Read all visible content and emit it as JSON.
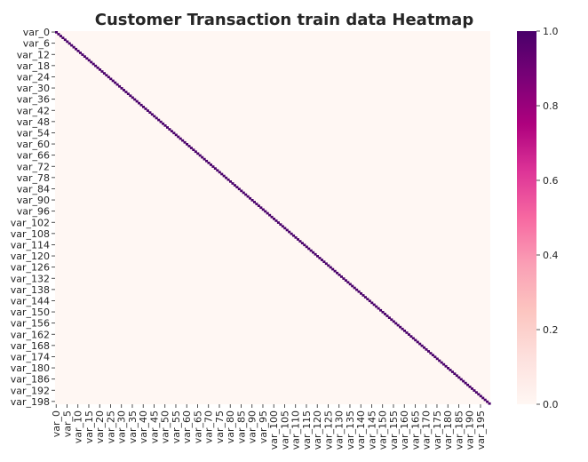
{
  "chart_data": {
    "type": "heatmap",
    "title": "Customer Transaction train data Heatmap",
    "xlabel": "",
    "ylabel": "",
    "variable_prefix": "var_",
    "variable_count": 200,
    "x_tick_labels": [
      "var_0",
      "var_5",
      "var_10",
      "var_15",
      "var_20",
      "var_25",
      "var_30",
      "var_35",
      "var_40",
      "var_45",
      "var_50",
      "var_55",
      "var_60",
      "var_65",
      "var_70",
      "var_75",
      "var_80",
      "var_85",
      "var_90",
      "var_95",
      "var_100",
      "var_105",
      "var_110",
      "var_115",
      "var_120",
      "var_125",
      "var_130",
      "var_135",
      "var_140",
      "var_145",
      "var_150",
      "var_155",
      "var_160",
      "var_165",
      "var_170",
      "var_175",
      "var_180",
      "var_185",
      "var_190",
      "var_195"
    ],
    "y_tick_labels": [
      "var_0",
      "var_6",
      "var_12",
      "var_18",
      "var_24",
      "var_30",
      "var_36",
      "var_42",
      "var_48",
      "var_54",
      "var_60",
      "var_66",
      "var_72",
      "var_78",
      "var_84",
      "var_90",
      "var_96",
      "var_102",
      "var_108",
      "var_114",
      "var_120",
      "var_126",
      "var_132",
      "var_138",
      "var_144",
      "var_150",
      "var_156",
      "var_162",
      "var_168",
      "var_174",
      "var_180",
      "var_186",
      "var_192",
      "var_198"
    ],
    "values_description_diagonal": 1.0,
    "values_off_diagonal": 0.0,
    "colorbar": {
      "min": 0.0,
      "max": 1.0,
      "ticks": [
        "0.0",
        "0.2",
        "0.4",
        "0.6",
        "0.8",
        "1.0"
      ],
      "colormap": "RdPu",
      "colors": [
        "#fff7f3",
        "#fde0dd",
        "#fcc5c0",
        "#fa9fb5",
        "#f768a1",
        "#dd3497",
        "#ae017e",
        "#7a0177",
        "#49006a"
      ]
    }
  }
}
